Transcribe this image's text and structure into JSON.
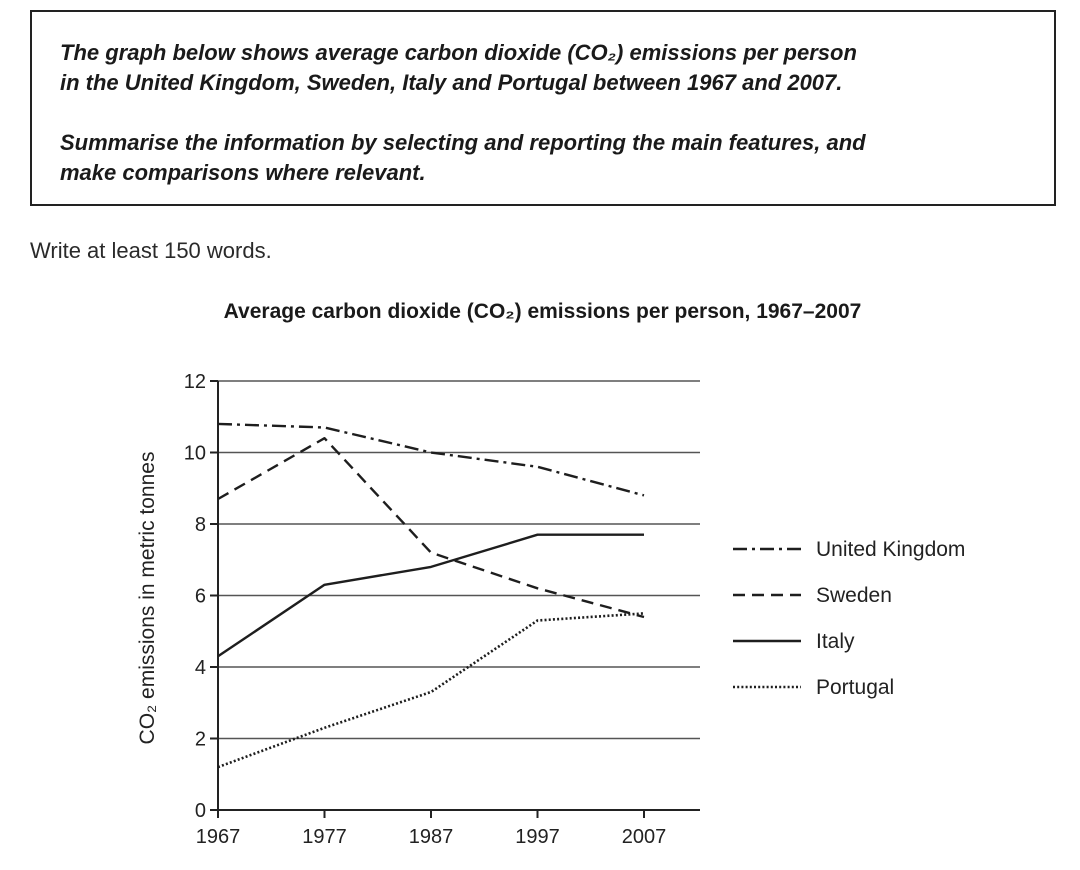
{
  "task": {
    "line1": "The graph below shows average carbon dioxide (CO₂) emissions per person",
    "line2": "in the United Kingdom, Sweden, Italy and Portugal between 1967 and 2007.",
    "line3": "Summarise the information by selecting and reporting the main features, and",
    "line4": "make comparisons where relevant."
  },
  "instruction": "Write at least 150 words.",
  "chart_data": {
    "type": "line",
    "title": "Average carbon dioxide (CO₂) emissions per person, 1967–2007",
    "xlabel": "",
    "ylabel": "CO₂ emissions in metric tonnes",
    "x": [
      1967,
      1977,
      1987,
      1997,
      2007
    ],
    "x_tick_labels": [
      "1967",
      "1977",
      "1987",
      "1997",
      "2007"
    ],
    "y_ticks": [
      0,
      2,
      4,
      6,
      8,
      10,
      12
    ],
    "y_tick_labels": [
      "0",
      "2",
      "4",
      "6",
      "8",
      "10",
      "12"
    ],
    "ylim": [
      0,
      12
    ],
    "grid": "horizontal",
    "legend_position": "right",
    "series": [
      {
        "name": "United Kingdom",
        "style": "dash-dot",
        "values": [
          10.8,
          10.7,
          10.0,
          9.6,
          8.8
        ]
      },
      {
        "name": "Sweden",
        "style": "dashed",
        "values": [
          8.7,
          10.4,
          7.2,
          6.2,
          5.4
        ]
      },
      {
        "name": "Italy",
        "style": "solid",
        "values": [
          4.3,
          6.3,
          6.8,
          7.7,
          7.7
        ]
      },
      {
        "name": "Portugal",
        "style": "dotted",
        "values": [
          1.2,
          2.3,
          3.3,
          5.3,
          5.5
        ]
      }
    ],
    "line_color": "#1e1e1e",
    "grid_color": "#555555"
  }
}
